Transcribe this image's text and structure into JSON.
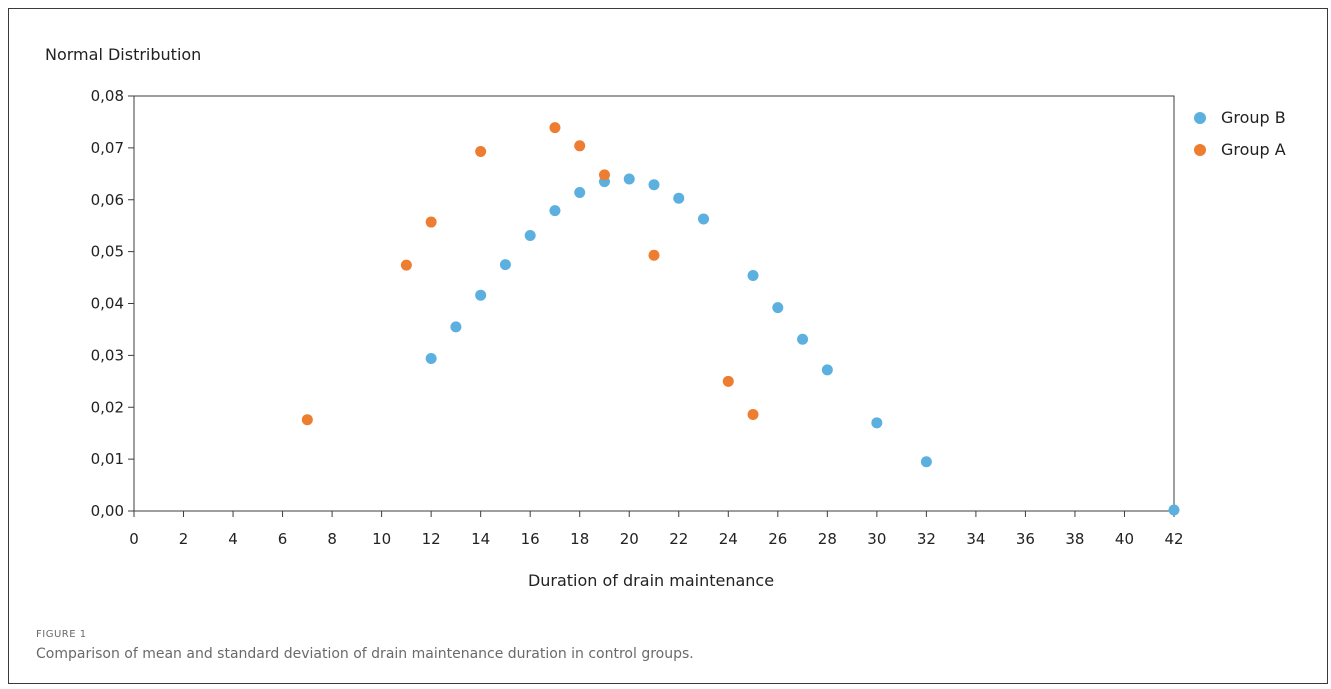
{
  "chart_data": {
    "type": "scatter",
    "title": "Normal Distribution",
    "xlabel": "Duration of drain maintenance",
    "ylabel": "",
    "xlim": [
      0,
      42
    ],
    "ylim": [
      0,
      0.08
    ],
    "x_ticks": [
      "0",
      "2",
      "4",
      "6",
      "8",
      "10",
      "12",
      "14",
      "16",
      "18",
      "20",
      "22",
      "24",
      "26",
      "28",
      "30",
      "32",
      "34",
      "36",
      "38",
      "40",
      "42"
    ],
    "y_ticks": [
      "0,00",
      "0,01",
      "0,02",
      "0,03",
      "0,04",
      "0,05",
      "0,06",
      "0,07",
      "0,08"
    ],
    "grid": false,
    "legend_position": "right",
    "series": [
      {
        "name": "Group B",
        "color": "#5bb0e0",
        "points": [
          {
            "x": 12,
            "y": 0.0294
          },
          {
            "x": 13,
            "y": 0.0355
          },
          {
            "x": 14,
            "y": 0.0416
          },
          {
            "x": 15,
            "y": 0.0475
          },
          {
            "x": 16,
            "y": 0.0531
          },
          {
            "x": 17,
            "y": 0.0579
          },
          {
            "x": 18,
            "y": 0.0614
          },
          {
            "x": 19,
            "y": 0.0635
          },
          {
            "x": 20,
            "y": 0.064
          },
          {
            "x": 21,
            "y": 0.0629
          },
          {
            "x": 22,
            "y": 0.0603
          },
          {
            "x": 23,
            "y": 0.0563
          },
          {
            "x": 25,
            "y": 0.0454
          },
          {
            "x": 26,
            "y": 0.0392
          },
          {
            "x": 27,
            "y": 0.0331
          },
          {
            "x": 28,
            "y": 0.0272
          },
          {
            "x": 30,
            "y": 0.017
          },
          {
            "x": 32,
            "y": 0.0095
          },
          {
            "x": 42,
            "y": 0.0002
          }
        ]
      },
      {
        "name": "Group A",
        "color": "#ed7d31",
        "points": [
          {
            "x": 7,
            "y": 0.0176
          },
          {
            "x": 11,
            "y": 0.0474
          },
          {
            "x": 12,
            "y": 0.0557
          },
          {
            "x": 14,
            "y": 0.0693
          },
          {
            "x": 17,
            "y": 0.0739
          },
          {
            "x": 18,
            "y": 0.0704
          },
          {
            "x": 19,
            "y": 0.0648
          },
          {
            "x": 21,
            "y": 0.0493
          },
          {
            "x": 24,
            "y": 0.025
          },
          {
            "x": 25,
            "y": 0.0186
          }
        ]
      }
    ]
  },
  "figure": {
    "label": "FIGURE 1",
    "caption": "Comparison of mean and standard deviation of drain maintenance duration in control groups."
  }
}
